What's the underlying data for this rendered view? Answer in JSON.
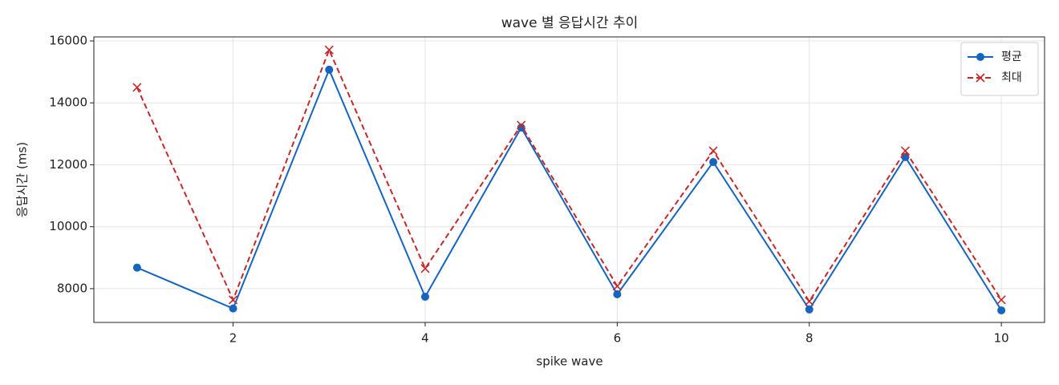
{
  "chart_data": {
    "type": "line",
    "title": "wave 별 응답시간 추이",
    "xlabel": "spike wave",
    "ylabel": "응답시간 (ms)",
    "x": [
      1,
      2,
      3,
      4,
      5,
      6,
      7,
      8,
      9,
      10
    ],
    "series": [
      {
        "name": "평균",
        "color": "#1565c0",
        "linestyle": "solid",
        "marker": "o",
        "values": [
          8680,
          7360,
          15070,
          7740,
          13200,
          7820,
          12090,
          7330,
          12250,
          7300
        ]
      },
      {
        "name": "최대",
        "color": "#c62828",
        "linestyle": "dashed",
        "marker": "x",
        "values": [
          14500,
          7640,
          15710,
          8650,
          13280,
          8080,
          12450,
          7590,
          12450,
          7640
        ]
      }
    ],
    "xlim": [
      0.55,
      10.45
    ],
    "xticks": [
      2,
      4,
      6,
      8,
      10
    ],
    "ylim": [
      6910,
      16130
    ],
    "yticks": [
      8000,
      10000,
      12000,
      14000,
      16000
    ],
    "grid": true,
    "legend": "upper right"
  }
}
